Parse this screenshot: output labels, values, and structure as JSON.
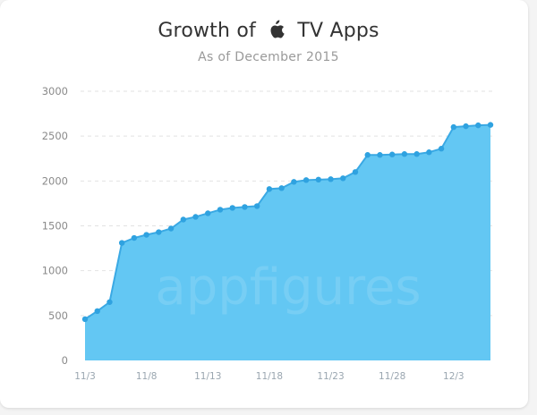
{
  "header": {
    "title_before": "Growth of",
    "title_after": "TV Apps",
    "subtitle": "As of December 2015",
    "logo_icon": "apple-icon"
  },
  "watermark": "appfigures",
  "colors": {
    "area_fill": "#63c7f3",
    "line": "#3aa9e4",
    "point": "#2fa2e0",
    "grid": "#e2e2e2"
  },
  "chart_data": {
    "type": "area",
    "title": "Growth of  TV Apps",
    "subtitle": "As of December 2015",
    "xlabel": "",
    "ylabel": "",
    "ylim": [
      0,
      3000
    ],
    "yticks": [
      0,
      500,
      1000,
      1500,
      2000,
      2500,
      3000
    ],
    "grid": true,
    "x_tick_labels": [
      {
        "day": 0,
        "label": "11/3"
      },
      {
        "day": 5,
        "label": "11/8"
      },
      {
        "day": 10,
        "label": "11/13"
      },
      {
        "day": 15,
        "label": "11/18"
      },
      {
        "day": 20,
        "label": "11/23"
      },
      {
        "day": 25,
        "label": "11/28"
      },
      {
        "day": 30,
        "label": "12/3"
      }
    ],
    "x": [
      "11/3",
      "11/4",
      "11/5",
      "11/6",
      "11/7",
      "11/8",
      "11/9",
      "11/10",
      "11/11",
      "11/12",
      "11/13",
      "11/14",
      "11/15",
      "11/16",
      "11/17",
      "11/18",
      "11/19",
      "11/20",
      "11/21",
      "11/22",
      "11/23",
      "11/24",
      "11/25",
      "11/26",
      "11/27",
      "11/28",
      "11/29",
      "11/30",
      "12/1",
      "12/2",
      "12/3",
      "12/4",
      "12/5",
      "12/6"
    ],
    "values": [
      460,
      550,
      650,
      1310,
      1365,
      1400,
      1430,
      1470,
      1570,
      1600,
      1640,
      1680,
      1700,
      1710,
      1720,
      1910,
      1920,
      1990,
      2010,
      2015,
      2020,
      2030,
      2100,
      2290,
      2290,
      2295,
      2300,
      2300,
      2320,
      2360,
      2600,
      2610,
      2620,
      2625
    ]
  }
}
